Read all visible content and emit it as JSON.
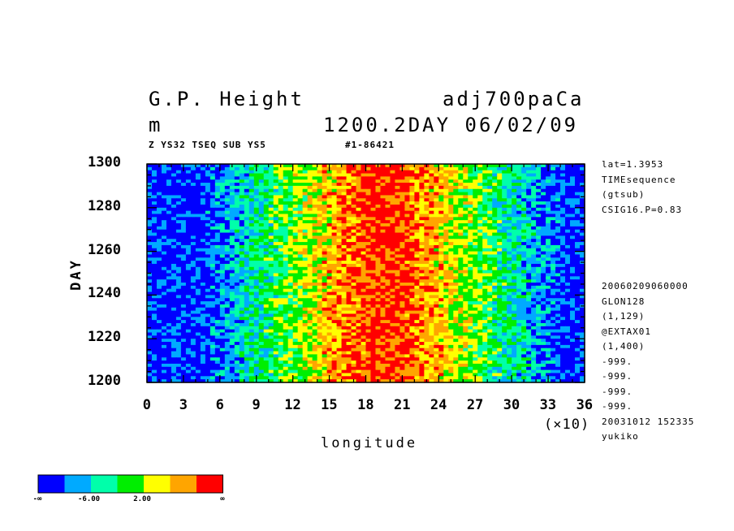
{
  "header": {
    "title_left": "G.P. Height",
    "title_right": "adj700paCa",
    "units": "m",
    "date_label": "1200.2DAY 06/02/09",
    "sub_left": "Z YS32 TSEQ SUB YS5",
    "sub_right": "#1-86421"
  },
  "side_info": {
    "top": [
      "lat=1.3953",
      "TIMEsequence",
      "(gtsub)",
      "CSIG16.P=0.83"
    ],
    "bottom": [
      "20060209060000",
      "GLON128",
      "(1,129)",
      "@EXTAX01",
      "(1,400)",
      "-999.",
      "-999.",
      "-999.",
      "-999.",
      "20031012 152335",
      "yukiko"
    ]
  },
  "chart_data": {
    "type": "heatmap",
    "xlabel": "longitude",
    "ylabel": "DAY",
    "x_scale_note": "(×10)",
    "xlim": [
      0,
      36
    ],
    "ylim": [
      1200,
      1300
    ],
    "x_ticks": [
      "0",
      "3",
      "6",
      "9",
      "12",
      "15",
      "18",
      "21",
      "24",
      "27",
      "30",
      "33",
      "36"
    ],
    "y_ticks": [
      "1200",
      "1220",
      "1240",
      "1260",
      "1280",
      "1300"
    ],
    "colorbar": {
      "colors": [
        "#0000ff",
        "#00aaff",
        "#00ffaa",
        "#00ee00",
        "#ffff00",
        "#ffa500",
        "#ff0000"
      ],
      "labels": [
        "-∞",
        "-6.00",
        "2.00",
        "∞"
      ]
    }
  }
}
